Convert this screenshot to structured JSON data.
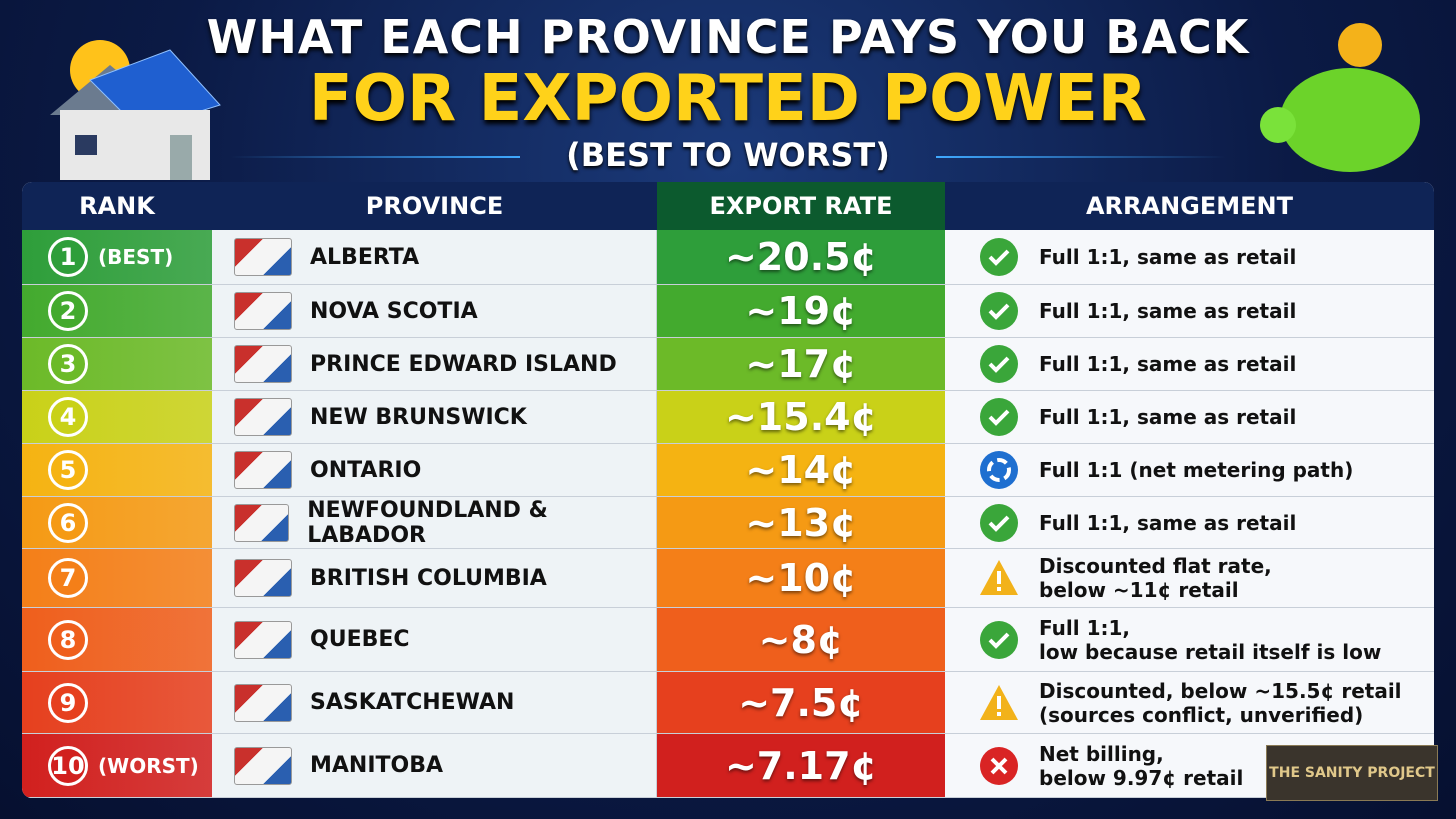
{
  "header": {
    "title_line1": "WHAT EACH PROVINCE PAYS YOU BACK",
    "title_line2": "FOR EXPORTED POWER",
    "subtitle": "(BEST TO WORST)"
  },
  "table": {
    "columns": [
      "RANK",
      "PROVINCE",
      "EXPORT RATE",
      "ARRANGEMENT"
    ],
    "rows": [
      {
        "rank": "1",
        "rank_note": "(BEST)",
        "province": "ALBERTA",
        "rate": "~20.5¢",
        "arrangement": [
          "Full 1:1, same as retail"
        ],
        "status": "check",
        "color": "#2e9e3a"
      },
      {
        "rank": "2",
        "province": "NOVA SCOTIA",
        "rate": "~19¢",
        "arrangement": [
          "Full 1:1, same as retail"
        ],
        "status": "check",
        "color": "#43aa2e"
      },
      {
        "rank": "3",
        "province": "PRINCE EDWARD ISLAND",
        "rate": "~17¢",
        "arrangement": [
          "Full 1:1, same as retail"
        ],
        "status": "check",
        "color": "#6cba28"
      },
      {
        "rank": "4",
        "province": "NEW BRUNSWICK",
        "rate": "~15.4¢",
        "arrangement": [
          "Full 1:1, same as retail"
        ],
        "status": "check",
        "color": "#c9d118"
      },
      {
        "rank": "5",
        "province": "ONTARIO",
        "rate": "~14¢",
        "arrangement": [
          "Full 1:1 (net metering path)"
        ],
        "status": "cycle",
        "color": "#f5b312"
      },
      {
        "rank": "6",
        "province": "NEWFOUNDLAND & LABADOR",
        "rate": "~13¢",
        "arrangement": [
          "Full 1:1, same as retail"
        ],
        "status": "check",
        "color": "#f59a14"
      },
      {
        "rank": "7",
        "province": "BRITISH COLUMBIA",
        "rate": "~10¢",
        "arrangement": [
          "Discounted flat rate,",
          "below ~11¢ retail"
        ],
        "status": "warn",
        "color": "#f47f18"
      },
      {
        "rank": "8",
        "province": "QUEBEC",
        "rate": "~8¢",
        "arrangement": [
          "Full 1:1,",
          "low because retail itself is low"
        ],
        "status": "check",
        "color": "#ef5f1c"
      },
      {
        "rank": "9",
        "province": "SASKATCHEWAN",
        "rate": "~7.5¢",
        "arrangement": [
          "Discounted, below ~15.5¢ retail",
          "(sources conflict, unverified)"
        ],
        "status": "warn",
        "color": "#e6401e"
      },
      {
        "rank": "10",
        "rank_note": "(WORST)",
        "province": "MANITOBA",
        "rate": "~7.17¢",
        "arrangement": [
          "Net billing,",
          "below 9.97¢ retail"
        ],
        "status": "x",
        "color": "#d1201e"
      }
    ]
  },
  "watermark": "THE SANITY PROJECT"
}
